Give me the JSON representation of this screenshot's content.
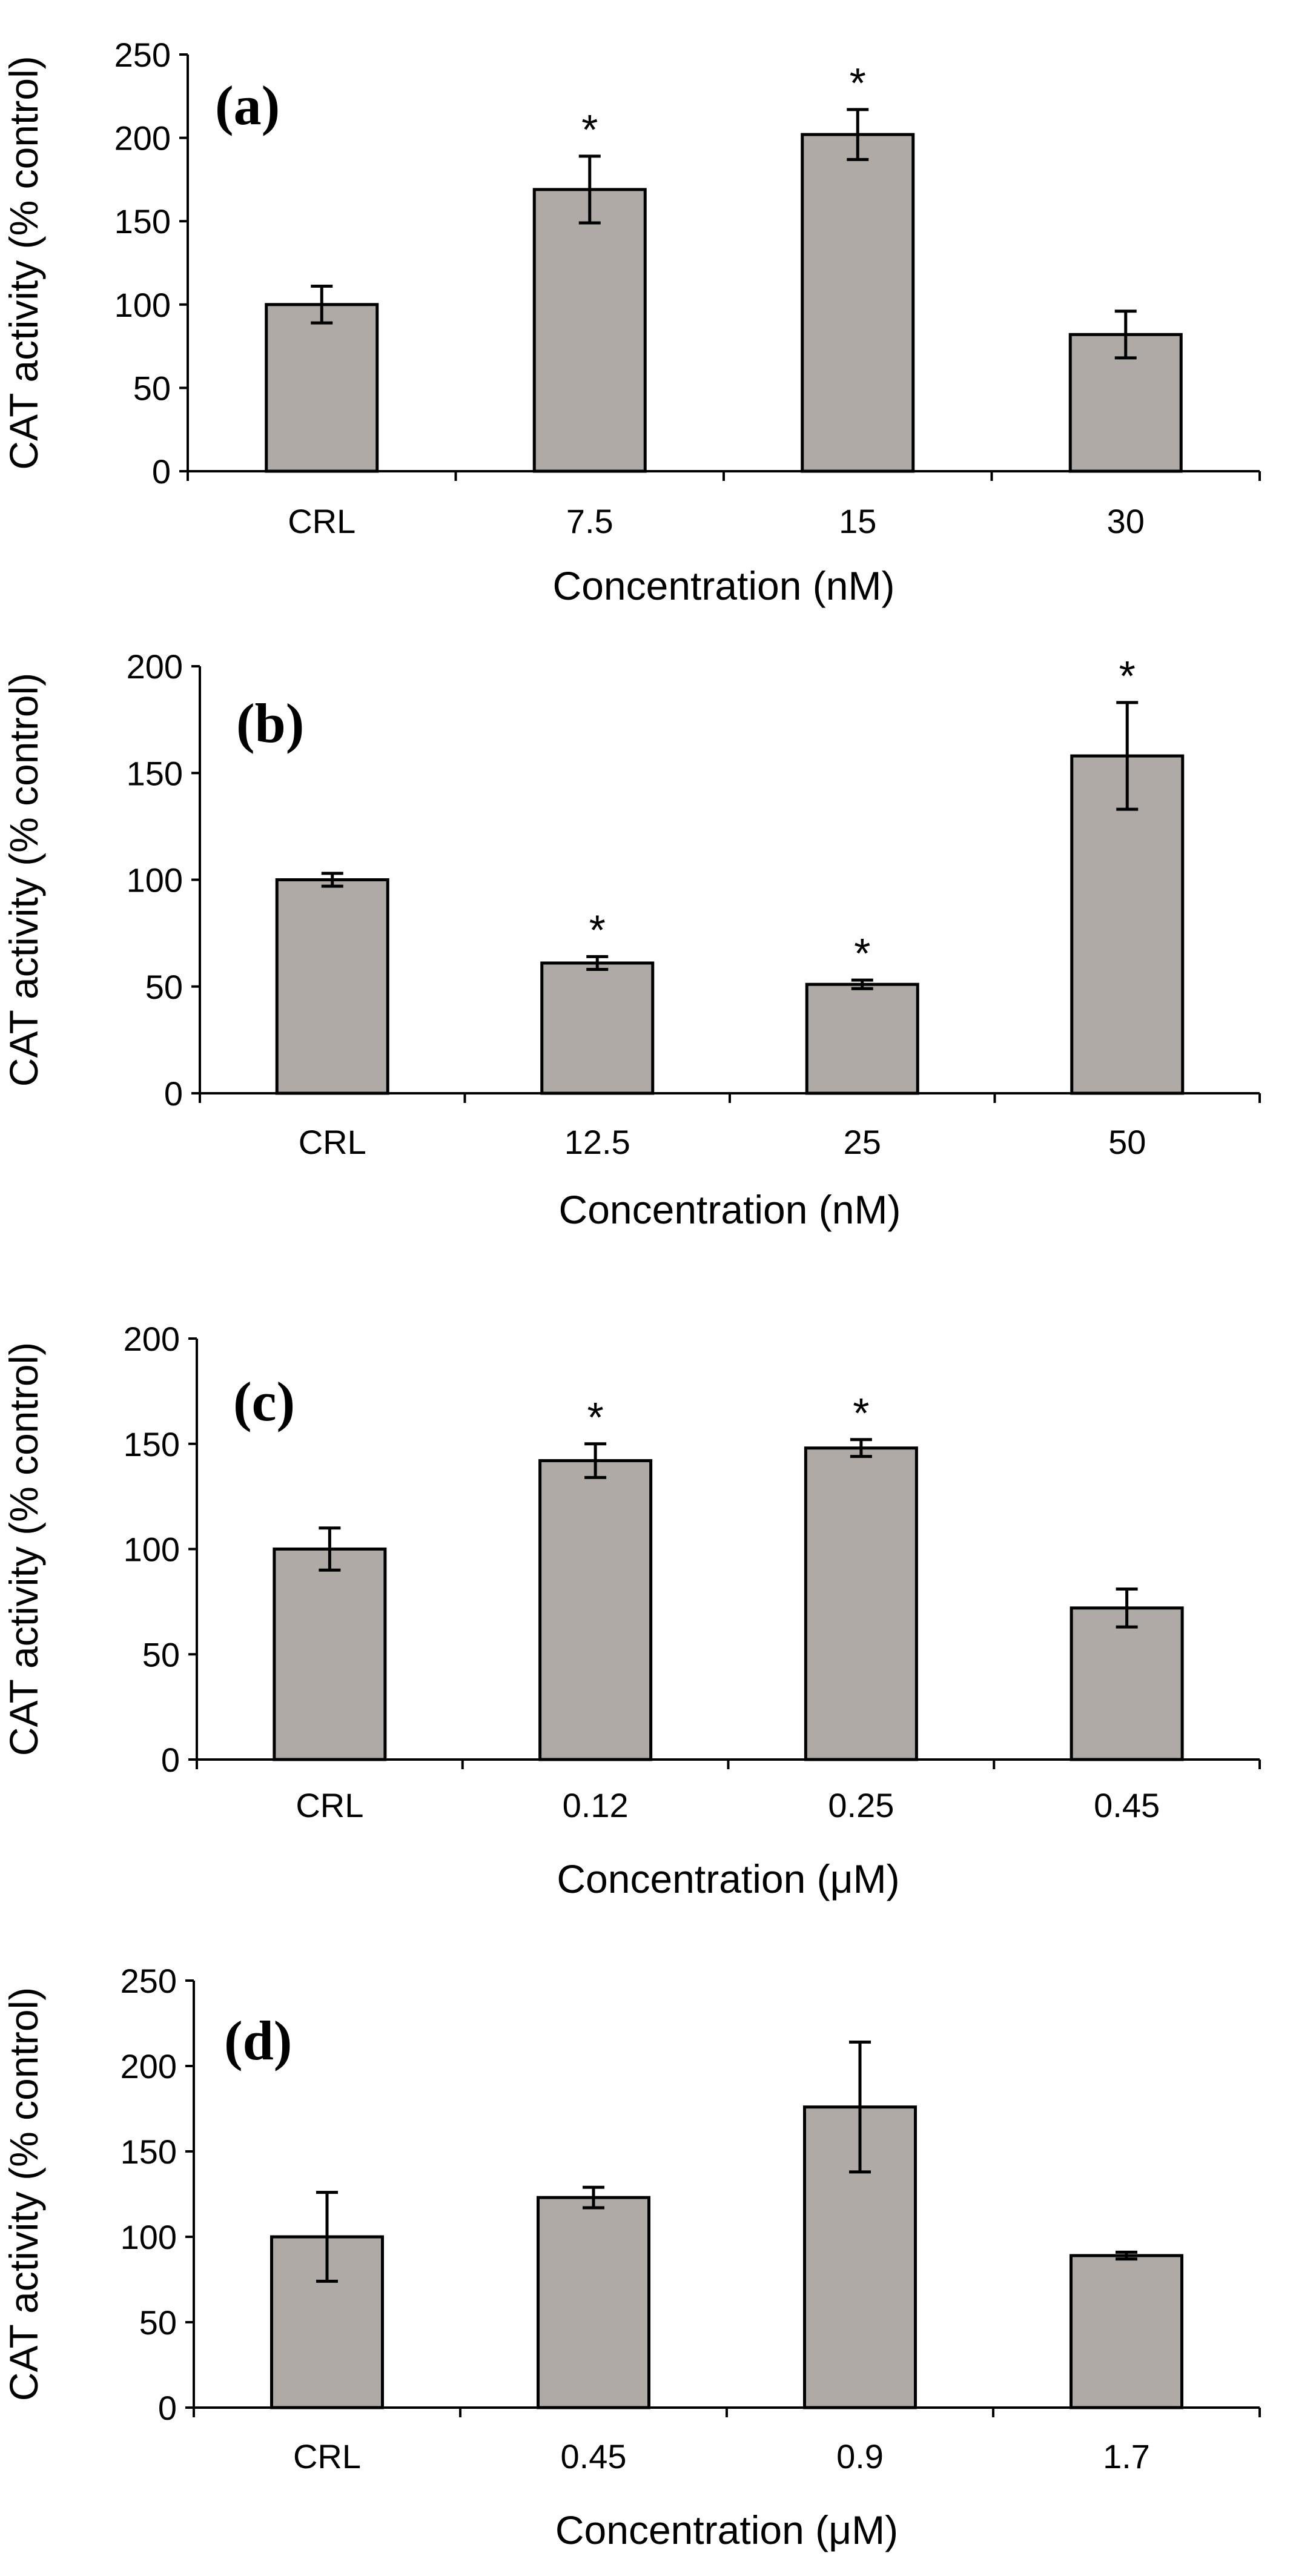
{
  "chart_data": [
    {
      "type": "bar",
      "panel_label": "(a)",
      "categories": [
        "CRL",
        "7.5",
        "15",
        "30"
      ],
      "values": [
        100,
        169,
        202,
        82
      ],
      "errors": [
        11,
        20,
        15,
        14
      ],
      "significance": [
        "",
        "*",
        "*",
        ""
      ],
      "ylabel": "CAT activity (% control)",
      "xlabel": "Concentration (nM)",
      "ylim": [
        0,
        250
      ],
      "yticks": [
        "0",
        "50",
        "100",
        "150",
        "200",
        "250"
      ],
      "ytick_values": [
        0,
        50,
        100,
        150,
        200,
        250
      ]
    },
    {
      "type": "bar",
      "panel_label": "(b)",
      "categories": [
        "CRL",
        "12.5",
        "25",
        "50"
      ],
      "values": [
        100,
        61,
        51,
        158
      ],
      "errors": [
        3,
        3,
        2,
        25
      ],
      "significance": [
        "",
        "*",
        "*",
        "*"
      ],
      "ylabel": "CAT activity (% control)",
      "xlabel": "Concentration (nM)",
      "ylim": [
        0,
        200
      ],
      "yticks": [
        "0",
        "50",
        "100",
        "150",
        "200"
      ],
      "ytick_values": [
        0,
        50,
        100,
        150,
        200
      ]
    },
    {
      "type": "bar",
      "panel_label": "(c)",
      "categories": [
        "CRL",
        "0.12",
        "0.25",
        "0.45"
      ],
      "values": [
        100,
        142,
        148,
        72
      ],
      "errors": [
        10,
        8,
        4,
        9
      ],
      "significance": [
        "",
        "*",
        "*",
        ""
      ],
      "ylabel": "CAT activity (% control)",
      "xlabel": "Concentration (μM)",
      "ylim": [
        0,
        200
      ],
      "yticks": [
        "0",
        "50",
        "100",
        "150",
        "200"
      ],
      "ytick_values": [
        0,
        50,
        100,
        150,
        200
      ]
    },
    {
      "type": "bar",
      "panel_label": "(d)",
      "categories": [
        "CRL",
        "0.45",
        "0.9",
        "1.7"
      ],
      "values": [
        100,
        123,
        176,
        89
      ],
      "errors": [
        26,
        6,
        38,
        2
      ],
      "significance": [
        "",
        "",
        "",
        ""
      ],
      "ylabel": "CAT activity (% control)",
      "xlabel": "Concentration (μM)",
      "ylim": [
        0,
        250
      ],
      "yticks": [
        "0",
        "50",
        "100",
        "150",
        "200",
        "250"
      ],
      "ytick_values": [
        0,
        50,
        100,
        150,
        200,
        250
      ]
    }
  ]
}
